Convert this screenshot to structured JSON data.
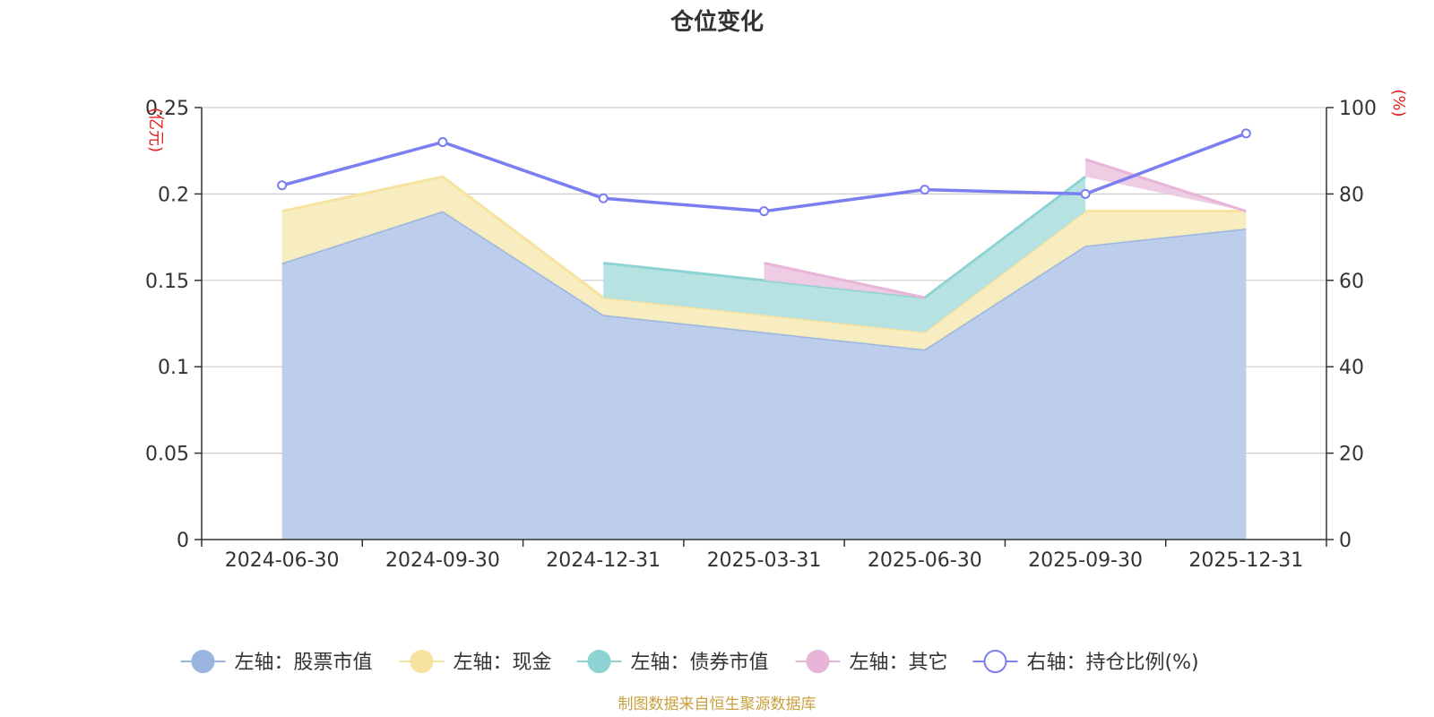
{
  "chart_data": {
    "type": "area",
    "title": "仓位变化",
    "categories": [
      "2024-06-30",
      "2024-09-30",
      "2024-12-31",
      "2025-03-31",
      "2025-06-30",
      "2025-09-30",
      "2025-12-31"
    ],
    "left_axis": {
      "unit": "(亿元)",
      "ylim": [
        0,
        0.25
      ],
      "ticks": [
        "0",
        "0.05",
        "0.1",
        "0.15",
        "0.2",
        "0.25"
      ]
    },
    "right_axis": {
      "unit": "(%)",
      "ylim": [
        0,
        100
      ],
      "ticks": [
        "0",
        "20",
        "40",
        "60",
        "80",
        "100"
      ]
    },
    "stack_series": [
      {
        "name": "左轴：股票市值",
        "color": "#9ab6e0",
        "fill": "#b8cbea",
        "values": [
          0.16,
          0.19,
          0.13,
          0.12,
          0.11,
          0.17,
          0.18
        ]
      },
      {
        "name": "左轴：现金",
        "color": "#f6e3a0",
        "fill": "#f8ecbd",
        "values": [
          0.03,
          0.02,
          0.01,
          0.01,
          0.01,
          0.02,
          0.01
        ]
      },
      {
        "name": "左轴：债券市值",
        "color": "#8ed3d3",
        "fill": "#b3e0e0",
        "values": [
          0,
          0,
          0.02,
          0.02,
          0.02,
          0.02,
          0
        ]
      },
      {
        "name": "左轴：其它",
        "color": "#e8b4d8",
        "fill": "#ecc9e3",
        "values": [
          0,
          0,
          0,
          0.01,
          0,
          0.01,
          0
        ]
      }
    ],
    "line_series": {
      "name": "右轴：持仓比例(%)",
      "color": "#7b7ef0",
      "values": [
        82,
        92,
        79,
        76,
        81,
        80,
        94
      ]
    },
    "source": "制图数据来自恒生聚源数据库"
  }
}
